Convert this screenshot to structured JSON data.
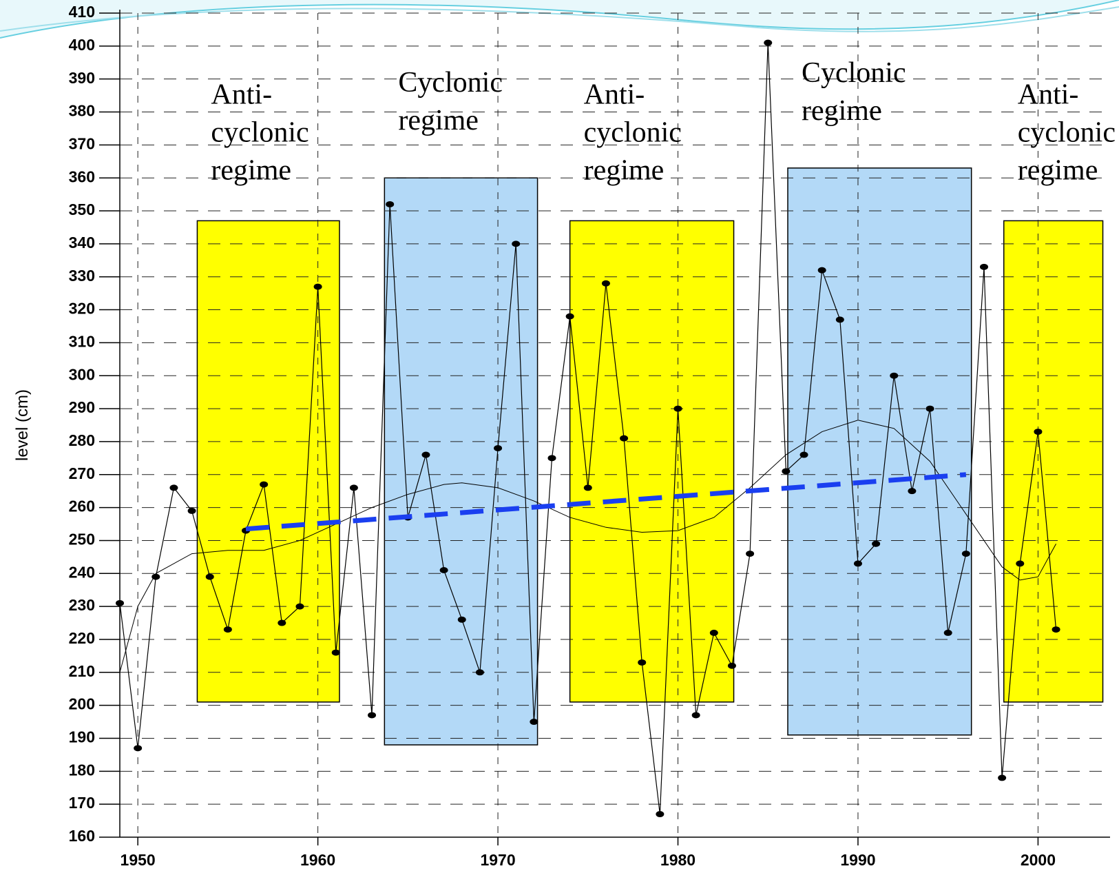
{
  "chart_data": {
    "type": "line",
    "y_label": "level (cm)",
    "xlim": [
      1949,
      2004
    ],
    "ylim": [
      160,
      410
    ],
    "xticks": [
      1950,
      1960,
      1970,
      1980,
      1990,
      2000
    ],
    "yticks": [
      160,
      170,
      180,
      190,
      200,
      210,
      220,
      230,
      240,
      250,
      260,
      270,
      280,
      290,
      300,
      310,
      320,
      330,
      340,
      350,
      360,
      370,
      380,
      390,
      400,
      410
    ],
    "grid": true,
    "regimes": [
      {
        "label": [
          "Anti-",
          "cyclonic",
          "regime"
        ],
        "color": "#ffff00",
        "x": [
          1953.3,
          1961.2
        ],
        "y": [
          201,
          347
        ]
      },
      {
        "label": [
          "Cyclonic",
          "regime"
        ],
        "color": "#b3d9f7",
        "x": [
          1963.7,
          1972.2
        ],
        "y": [
          188,
          360
        ]
      },
      {
        "label": [
          "Anti-",
          "cyclonic",
          "regime"
        ],
        "color": "#ffff00",
        "x": [
          1974,
          1983.1
        ],
        "y": [
          201,
          347
        ]
      },
      {
        "label": [
          "Cyclonic",
          "regime"
        ],
        "color": "#b3d9f7",
        "x": [
          1986.1,
          1996.3
        ],
        "y": [
          191,
          363
        ]
      },
      {
        "label": [
          "Anti-",
          "cyclonic",
          "regime"
        ],
        "color": "#ffff00",
        "x": [
          1998.1,
          2003.6
        ],
        "y": [
          201,
          347
        ]
      }
    ],
    "series": [
      {
        "color": "#000000",
        "markers": true,
        "width": 1.2,
        "x": [
          1949,
          1950,
          1951,
          1952,
          1953,
          1954,
          1955,
          1956,
          1957,
          1958,
          1959,
          1960,
          1961,
          1962,
          1963,
          1964,
          1965,
          1966,
          1967,
          1968,
          1969,
          1970,
          1971,
          1972,
          1973,
          1974,
          1975,
          1976,
          1977,
          1978,
          1979,
          1980,
          1981,
          1982,
          1983,
          1984,
          1985,
          1986,
          1987,
          1988,
          1989,
          1990,
          1991,
          1992,
          1993,
          1994,
          1995,
          1996,
          1997,
          1998,
          1999,
          2000,
          2001
        ],
        "values": [
          231,
          187,
          239,
          266,
          259,
          239,
          223,
          253,
          267,
          225,
          230,
          327,
          216,
          266,
          197,
          352,
          257,
          276,
          241,
          226,
          210,
          278,
          340,
          195,
          275,
          318,
          266,
          328,
          281,
          213,
          167,
          290,
          197,
          222,
          212,
          246,
          401,
          271,
          276,
          332,
          317,
          243,
          249,
          300,
          265,
          290,
          222,
          246,
          333,
          178,
          243,
          283,
          223
        ]
      },
      {
        "color": "#000000",
        "markers": false,
        "width": 1,
        "x": [
          1949,
          1950,
          1951,
          1953,
          1955,
          1957,
          1959,
          1961,
          1963,
          1965,
          1967,
          1968,
          1970,
          1972,
          1974,
          1976,
          1978,
          1980,
          1982,
          1984,
          1986,
          1988,
          1990,
          1992,
          1994,
          1996,
          1998,
          1999,
          2000,
          2001
        ],
        "values": [
          210,
          230,
          240,
          246,
          247,
          247,
          250,
          255,
          260,
          264,
          267,
          267.5,
          266,
          262,
          257,
          254,
          252.5,
          253,
          257,
          266,
          276,
          283,
          286.5,
          284,
          274,
          258,
          242,
          238,
          239,
          249
        ]
      },
      {
        "color": "#1a3ff0",
        "markers": false,
        "width": 7,
        "dashed": true,
        "x": [
          1956,
          1996
        ],
        "values": [
          253.5,
          270
        ]
      }
    ]
  }
}
